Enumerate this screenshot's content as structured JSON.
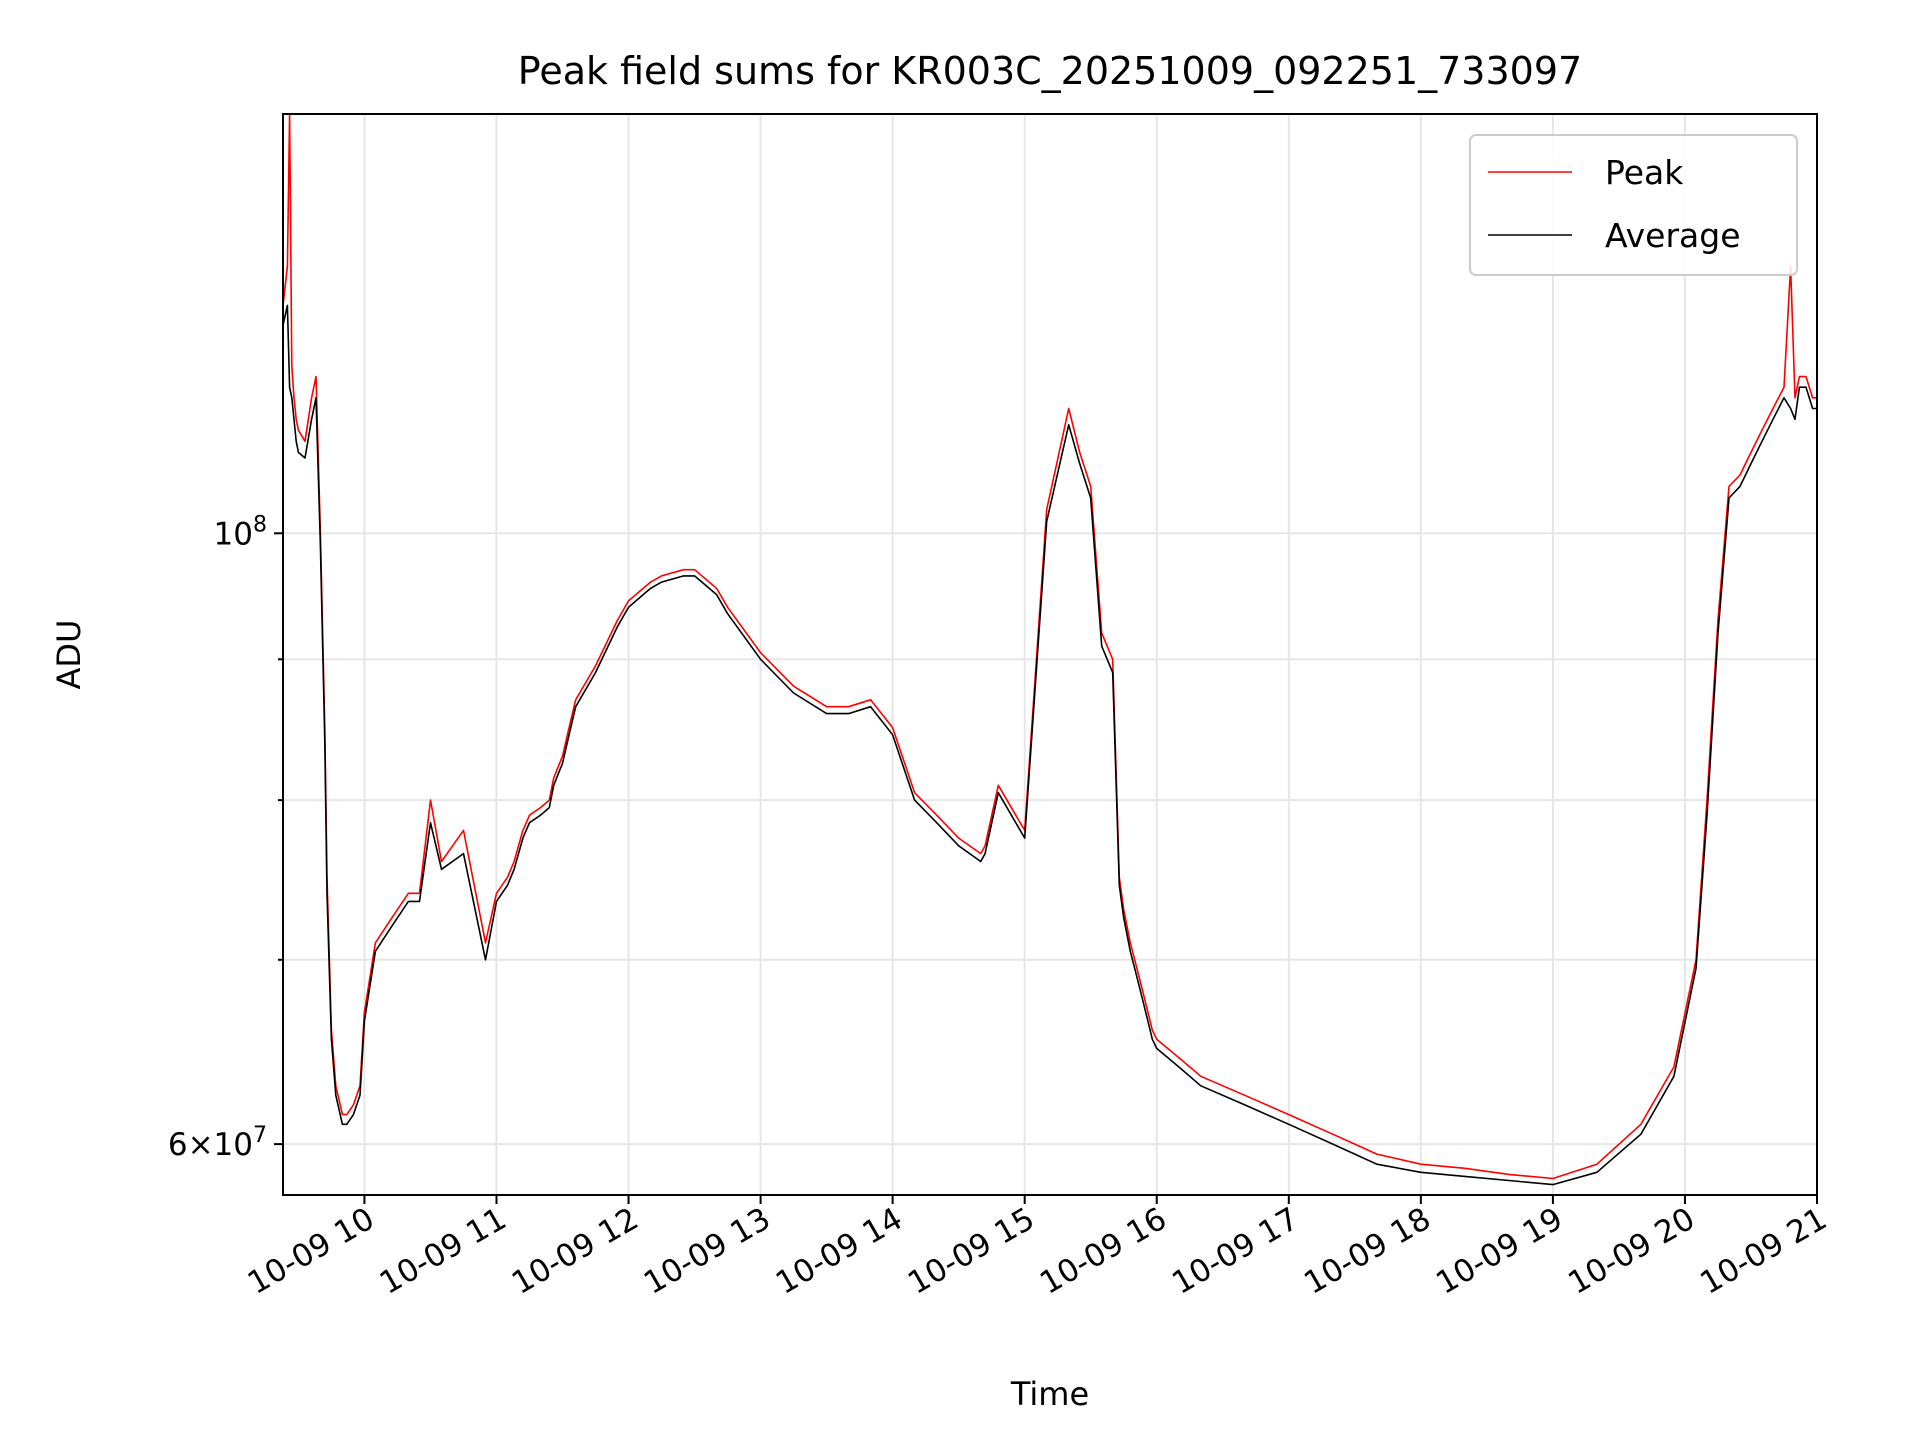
{
  "chart_data": {
    "type": "line",
    "title": "Peak field sums for KR003C_20251009_092251_733097",
    "xlabel": "Time",
    "ylabel": "ADU",
    "x_ticks": [
      "10-09 10",
      "10-09 11",
      "10-09 12",
      "10-09 13",
      "10-09 14",
      "10-09 15",
      "10-09 16",
      "10-09 17",
      "10-09 18",
      "10-09 19",
      "10-09 20",
      "10-09 21"
    ],
    "y_ticks": [
      {
        "value": 100000000,
        "base": "10",
        "exp": "8"
      },
      {
        "value": 60000000,
        "mantissa": "6",
        "base": "10",
        "exp": "7"
      }
    ],
    "y_scale": "log",
    "ylim": [
      57500000,
      142000000
    ],
    "xlim": [
      "2025-10-09 09:23",
      "2025-10-09 21:00"
    ],
    "grid": true,
    "legend": "top-right",
    "colors": {
      "peak": "#ff0000",
      "average": "#000000",
      "grid": "#e6e6e6"
    },
    "series": [
      {
        "name": "Peak",
        "key": "peak",
        "x": [
          "09:23",
          "09:25",
          "09:26",
          "09:27",
          "09:28",
          "09:29",
          "09:30",
          "09:33",
          "09:36",
          "09:38",
          "09:40",
          "09:42",
          "09:43",
          "09:45",
          "09:47",
          "09:50",
          "09:52",
          "09:55",
          "09:58",
          "10:00",
          "10:05",
          "10:10",
          "10:15",
          "10:20",
          "10:25",
          "10:30",
          "10:35",
          "10:45",
          "10:55",
          "11:00",
          "11:05",
          "11:08",
          "11:12",
          "11:15",
          "11:20",
          "11:24",
          "11:26",
          "11:30",
          "11:33",
          "11:36",
          "11:45",
          "11:55",
          "12:00",
          "12:10",
          "12:15",
          "12:25",
          "12:30",
          "12:40",
          "12:45",
          "13:00",
          "13:15",
          "13:30",
          "13:40",
          "13:50",
          "14:00",
          "14:10",
          "14:20",
          "14:30",
          "14:40",
          "14:42",
          "14:48",
          "15:00",
          "15:10",
          "15:20",
          "15:25",
          "15:30",
          "15:35",
          "15:40",
          "15:43",
          "15:45",
          "15:48",
          "15:50",
          "15:52",
          "15:54",
          "15:56",
          "15:58",
          "16:00",
          "16:10",
          "16:20",
          "16:40",
          "17:00",
          "17:20",
          "17:30",
          "17:40",
          "18:00",
          "18:20",
          "18:40",
          "19:00",
          "19:20",
          "19:40",
          "19:55",
          "20:05",
          "20:10",
          "20:15",
          "20:20",
          "20:25",
          "20:30",
          "20:35",
          "20:40",
          "20:45",
          "20:48",
          "20:50",
          "20:52",
          "20:55",
          "20:58",
          "21:00"
        ],
        "values": [
          121000000,
          125000000,
          142000000,
          115000000,
          112000000,
          110000000,
          109000000,
          108000000,
          112000000,
          114000000,
          100000000,
          85000000,
          75000000,
          66000000,
          63000000,
          61500000,
          61500000,
          62000000,
          63000000,
          67000000,
          71000000,
          72000000,
          73000000,
          74000000,
          74000000,
          80000000,
          76000000,
          78000000,
          71000000,
          74000000,
          75000000,
          76000000,
          78000000,
          79000000,
          79500000,
          80000000,
          81500000,
          83000000,
          85000000,
          87000000,
          89500000,
          93000000,
          94500000,
          96000000,
          96500000,
          97000000,
          97000000,
          95500000,
          94000000,
          90500000,
          88000000,
          86500000,
          86500000,
          87000000,
          85000000,
          80500000,
          79000000,
          77500000,
          76500000,
          77000000,
          81000000,
          78000000,
          102000000,
          111000000,
          107000000,
          104000000,
          92000000,
          90000000,
          75000000,
          73000000,
          71000000,
          70000000,
          69000000,
          68000000,
          67000000,
          66000000,
          65500000,
          64500000,
          63500000,
          62500000,
          61500000,
          60500000,
          60000000,
          59500000,
          59000000,
          58800000,
          58500000,
          58300000,
          59000000,
          61000000,
          64000000,
          70000000,
          80000000,
          93000000,
          104000000,
          105000000,
          107000000,
          109000000,
          111000000,
          113000000,
          125000000,
          112000000,
          114000000,
          114000000,
          112000000,
          112000000
        ]
      },
      {
        "name": "Average",
        "key": "average",
        "x": [
          "09:23",
          "09:25",
          "09:26",
          "09:27",
          "09:28",
          "09:29",
          "09:30",
          "09:33",
          "09:36",
          "09:38",
          "09:40",
          "09:42",
          "09:43",
          "09:45",
          "09:47",
          "09:50",
          "09:52",
          "09:55",
          "09:58",
          "10:00",
          "10:05",
          "10:10",
          "10:15",
          "10:20",
          "10:25",
          "10:30",
          "10:35",
          "10:45",
          "10:55",
          "11:00",
          "11:05",
          "11:08",
          "11:12",
          "11:15",
          "11:20",
          "11:24",
          "11:26",
          "11:30",
          "11:33",
          "11:36",
          "11:45",
          "11:55",
          "12:00",
          "12:10",
          "12:15",
          "12:25",
          "12:30",
          "12:40",
          "12:45",
          "13:00",
          "13:15",
          "13:30",
          "13:40",
          "13:50",
          "14:00",
          "14:10",
          "14:20",
          "14:30",
          "14:40",
          "14:42",
          "14:48",
          "15:00",
          "15:10",
          "15:20",
          "15:25",
          "15:30",
          "15:35",
          "15:40",
          "15:43",
          "15:45",
          "15:48",
          "15:50",
          "15:52",
          "15:54",
          "15:56",
          "15:58",
          "16:00",
          "16:10",
          "16:20",
          "16:40",
          "17:00",
          "17:20",
          "17:30",
          "17:40",
          "18:00",
          "18:20",
          "18:40",
          "19:00",
          "19:20",
          "19:40",
          "19:55",
          "20:05",
          "20:10",
          "20:15",
          "20:20",
          "20:25",
          "20:30",
          "20:35",
          "20:40",
          "20:45",
          "20:48",
          "20:50",
          "20:52",
          "20:55",
          "20:58",
          "21:00"
        ],
        "values": [
          119000000,
          121000000,
          113000000,
          112000000,
          110000000,
          108000000,
          107000000,
          106500000,
          110000000,
          112000000,
          99000000,
          84000000,
          74000000,
          65500000,
          62500000,
          61000000,
          61000000,
          61500000,
          62500000,
          66500000,
          70500000,
          71500000,
          72500000,
          73500000,
          73500000,
          78500000,
          75500000,
          76500000,
          70000000,
          73500000,
          74500000,
          75500000,
          77500000,
          78500000,
          79000000,
          79500000,
          81000000,
          82500000,
          84500000,
          86500000,
          89000000,
          92500000,
          94000000,
          95500000,
          96000000,
          96500000,
          96500000,
          95000000,
          93500000,
          90000000,
          87500000,
          86000000,
          86000000,
          86500000,
          84500000,
          80000000,
          78500000,
          77000000,
          76000000,
          76500000,
          80500000,
          77500000,
          101000000,
          109500000,
          106000000,
          103000000,
          91000000,
          89000000,
          74500000,
          72500000,
          70500000,
          69500000,
          68500000,
          67500000,
          66500000,
          65500000,
          65000000,
          64000000,
          63000000,
          62000000,
          61000000,
          60000000,
          59500000,
          59000000,
          58600000,
          58400000,
          58200000,
          58000000,
          58600000,
          60500000,
          63500000,
          69500000,
          79000000,
          92000000,
          103000000,
          104000000,
          106000000,
          108000000,
          110000000,
          112000000,
          111000000,
          110000000,
          113000000,
          113000000,
          111000000,
          111000000
        ]
      }
    ]
  }
}
